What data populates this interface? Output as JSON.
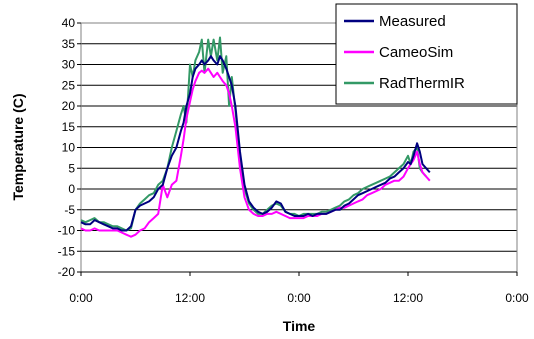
{
  "chart_data": {
    "type": "line",
    "title": "",
    "xlabel": "Time",
    "ylabel": "Temperature (C)",
    "x_unit": "hours",
    "xlim": [
      0,
      48
    ],
    "ylim": [
      -20,
      40
    ],
    "x_ticks": [
      0,
      12,
      24,
      36,
      48
    ],
    "x_tick_labels": [
      "0:00",
      "12:00",
      "0:00",
      "12:00",
      "0:00"
    ],
    "y_ticks": [
      -20,
      -15,
      -10,
      -5,
      0,
      5,
      10,
      15,
      20,
      25,
      30,
      35,
      40
    ],
    "grid": {
      "horizontal": true,
      "vertical": false
    },
    "legend_position": "top-right",
    "series": [
      {
        "name": "Measured",
        "color": "#000080",
        "x": [
          0,
          0.5,
          1,
          1.5,
          2,
          2.5,
          3,
          3.5,
          4,
          4.5,
          5,
          5.5,
          6,
          6.5,
          7,
          7.5,
          8,
          8.5,
          9,
          9.5,
          10,
          10.5,
          11,
          11.3,
          11.6,
          12,
          12.3,
          12.6,
          13,
          13.3,
          13.6,
          14,
          14.3,
          14.6,
          15,
          15.3,
          15.6,
          16,
          16.3,
          16.6,
          17,
          17.5,
          18,
          18.5,
          19,
          19.5,
          20,
          20.5,
          21,
          21.5,
          22,
          22.5,
          23,
          23.5,
          24,
          24.5,
          25,
          25.5,
          26,
          26.5,
          27,
          27.5,
          28,
          28.5,
          29,
          29.5,
          30,
          30.5,
          31,
          31.5,
          32,
          32.5,
          33,
          33.5,
          34,
          34.5,
          35,
          35.5,
          36,
          36.3,
          36.6,
          37,
          37.3,
          37.6,
          38,
          38.4
        ],
        "y": [
          -8,
          -8.5,
          -8.5,
          -7.5,
          -8,
          -8.5,
          -9,
          -9.5,
          -9.5,
          -10,
          -10,
          -9,
          -5,
          -4,
          -3.5,
          -3,
          -2,
          0,
          1,
          5,
          8,
          10,
          14,
          16,
          20,
          23,
          27,
          29,
          30,
          31,
          30,
          31,
          32,
          31,
          30,
          32,
          31,
          29,
          27,
          25,
          20,
          9,
          1,
          -3,
          -4.5,
          -5.5,
          -6,
          -5.5,
          -4.5,
          -3,
          -3.5,
          -5.5,
          -6,
          -6.5,
          -6.5,
          -6.5,
          -6,
          -6.5,
          -6,
          -6,
          -6,
          -5.5,
          -5,
          -5,
          -4,
          -3.5,
          -2.5,
          -1.5,
          -1,
          -0.5,
          0,
          0.5,
          1,
          1.5,
          2.5,
          3,
          4,
          5,
          6.5,
          6,
          8,
          11,
          9,
          6,
          5,
          4
        ]
      },
      {
        "name": "CameoSim",
        "color": "#ff00ff",
        "x": [
          0,
          0.5,
          1,
          1.5,
          2,
          2.5,
          3,
          3.5,
          4,
          4.5,
          5,
          5.5,
          6,
          6.5,
          7,
          7.5,
          8,
          8.5,
          9,
          9.5,
          10,
          10.5,
          11,
          11.3,
          11.6,
          12,
          12.3,
          12.6,
          13,
          13.3,
          13.6,
          14,
          14.3,
          14.6,
          15,
          15.3,
          15.6,
          16,
          16.3,
          16.6,
          17,
          17.5,
          18,
          18.5,
          19,
          19.5,
          20,
          20.5,
          21,
          21.5,
          22,
          22.5,
          23,
          23.5,
          24,
          24.5,
          25,
          25.5,
          26,
          26.5,
          27,
          27.5,
          28,
          28.5,
          29,
          29.5,
          30,
          30.5,
          31,
          31.5,
          32,
          32.5,
          33,
          33.5,
          34,
          34.5,
          35,
          35.5,
          36,
          36.3,
          36.6,
          37,
          37.3,
          37.6,
          38,
          38.4
        ],
        "y": [
          -9.5,
          -10,
          -10,
          -9.5,
          -10,
          -10,
          -10,
          -10,
          -10,
          -10.5,
          -11,
          -11.5,
          -11,
          -10,
          -9.5,
          -8,
          -7,
          -6,
          1,
          -2,
          1,
          2,
          8,
          12,
          17,
          21,
          24,
          26,
          28,
          28.5,
          28,
          29,
          28,
          27,
          28,
          27,
          26,
          25,
          23,
          20,
          15,
          5,
          -2,
          -5,
          -6,
          -6.5,
          -6.5,
          -6,
          -6,
          -5.5,
          -6,
          -6.5,
          -7,
          -7,
          -7,
          -7,
          -6.5,
          -6.5,
          -6.5,
          -6,
          -6,
          -5.5,
          -5,
          -4.5,
          -4.5,
          -4,
          -3.5,
          -3,
          -2.5,
          -1.5,
          -1,
          -0.5,
          0,
          1,
          1.5,
          2,
          2,
          3,
          5,
          6,
          7,
          9,
          6,
          4,
          3,
          2
        ]
      },
      {
        "name": "RadThermIR",
        "color": "#339966",
        "x": [
          0,
          0.5,
          1,
          1.5,
          2,
          2.5,
          3,
          3.5,
          4,
          4.5,
          5,
          5.5,
          6,
          6.5,
          7,
          7.5,
          8,
          8.5,
          9,
          9.5,
          10,
          10.5,
          11,
          11.3,
          11.6,
          12,
          12.3,
          12.6,
          13,
          13.3,
          13.6,
          14,
          14.3,
          14.6,
          15,
          15.3,
          15.6,
          16,
          16.3,
          16.6,
          17,
          17.5,
          18,
          18.5,
          19,
          19.5,
          20,
          20.5,
          21,
          21.5,
          22,
          22.5,
          23,
          23.5,
          24,
          24.5,
          25,
          25.5,
          26,
          26.5,
          27,
          27.5,
          28,
          28.5,
          29,
          29.5,
          30,
          30.5,
          31,
          31.5,
          32,
          32.5,
          33,
          33.5,
          34,
          34.5,
          35,
          35.5,
          36,
          36.3,
          36.6,
          37,
          37.3,
          37.6,
          38
        ],
        "y": [
          -7.5,
          -8,
          -7.5,
          -7,
          -8,
          -8,
          -8.5,
          -9,
          -9,
          -9.5,
          -10,
          -9.5,
          -5,
          -3.5,
          -2.5,
          -1.5,
          -1,
          1,
          2,
          5,
          10,
          14,
          18,
          20,
          16,
          30,
          27,
          31,
          33,
          36,
          28,
          36,
          32,
          36,
          31,
          36.5,
          28,
          32,
          20,
          27,
          19,
          8,
          0,
          -3.5,
          -5,
          -6,
          -6,
          -5,
          -4,
          -3.5,
          -4,
          -5.5,
          -6,
          -6,
          -6.5,
          -6,
          -6,
          -6,
          -6,
          -5.5,
          -5.5,
          -5,
          -4.5,
          -4,
          -3,
          -2.5,
          -1.5,
          -1,
          0,
          0.5,
          1,
          1.5,
          2,
          2.5,
          3,
          4,
          5,
          6,
          8,
          6,
          9,
          10,
          5,
          4,
          3
        ]
      }
    ]
  }
}
